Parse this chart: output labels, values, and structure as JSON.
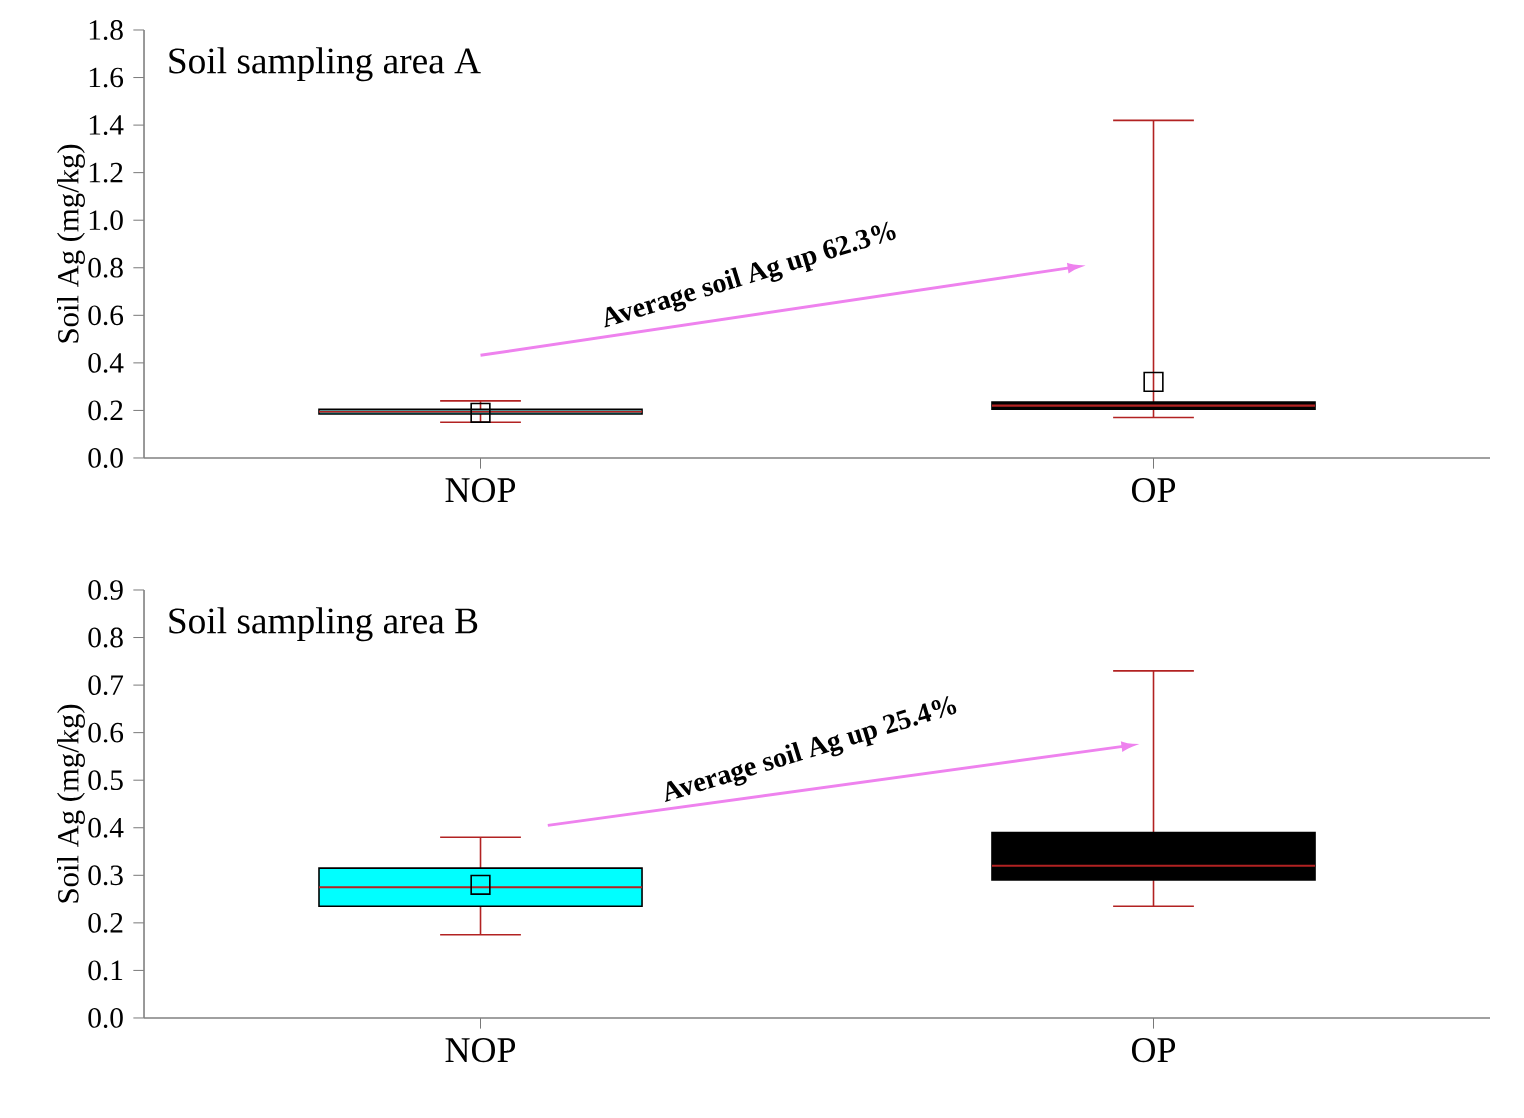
{
  "chart_data": [
    {
      "type": "box",
      "title": "Soil sampling area A",
      "ylabel": "Soil Ag (mg/kg)",
      "categories": [
        "NOP",
        "OP"
      ],
      "colors": [
        "#00ffff",
        "#000000"
      ],
      "boxes": [
        {
          "low": 0.15,
          "q1": 0.185,
          "median": 0.195,
          "q3": 0.205,
          "high": 0.24,
          "mean": 0.19
        },
        {
          "low": 0.17,
          "q1": 0.205,
          "median": 0.22,
          "q3": 0.235,
          "high": 1.42,
          "mean": 0.32
        }
      ],
      "ylim": [
        0,
        1.8
      ],
      "yticks": [
        {
          "value": 0,
          "label": "0.0"
        },
        {
          "value": 0.2,
          "label": "0.2"
        },
        {
          "value": 0.4,
          "label": "0.4"
        },
        {
          "value": 0.6,
          "label": "0.6"
        },
        {
          "value": 0.8,
          "label": "0.8"
        },
        {
          "value": 1.0,
          "label": "1.0"
        },
        {
          "value": 1.2,
          "label": "1.2"
        },
        {
          "value": 1.4,
          "label": "1.4"
        },
        {
          "value": 1.6,
          "label": "1.6"
        },
        {
          "value": 1.8,
          "label": "1.8"
        }
      ],
      "annotations": [
        "Average soil Ag up 62.3%"
      ]
    },
    {
      "type": "box",
      "title": "Soil sampling area B",
      "ylabel": "Soil Ag (mg/kg)",
      "categories": [
        "NOP",
        "OP"
      ],
      "colors": [
        "#00ffff",
        "#000000"
      ],
      "boxes": [
        {
          "low": 0.175,
          "q1": 0.235,
          "median": 0.275,
          "q3": 0.315,
          "high": 0.38,
          "mean": 0.28
        },
        {
          "low": 0.235,
          "q1": 0.29,
          "median": 0.32,
          "q3": 0.39,
          "high": 0.73,
          "mean": 0.35
        }
      ],
      "ylim": [
        0,
        0.9
      ],
      "yticks": [
        {
          "value": 0,
          "label": "0.0"
        },
        {
          "value": 0.1,
          "label": "0.1"
        },
        {
          "value": 0.2,
          "label": "0.2"
        },
        {
          "value": 0.3,
          "label": "0.3"
        },
        {
          "value": 0.4,
          "label": "0.4"
        },
        {
          "value": 0.5,
          "label": "0.5"
        },
        {
          "value": 0.6,
          "label": "0.6"
        },
        {
          "value": 0.7,
          "label": "0.7"
        },
        {
          "value": 0.8,
          "label": "0.8"
        },
        {
          "value": 0.9,
          "label": "0.9"
        }
      ],
      "annotations": [
        "Average soil Ag up 25.4%"
      ]
    }
  ]
}
